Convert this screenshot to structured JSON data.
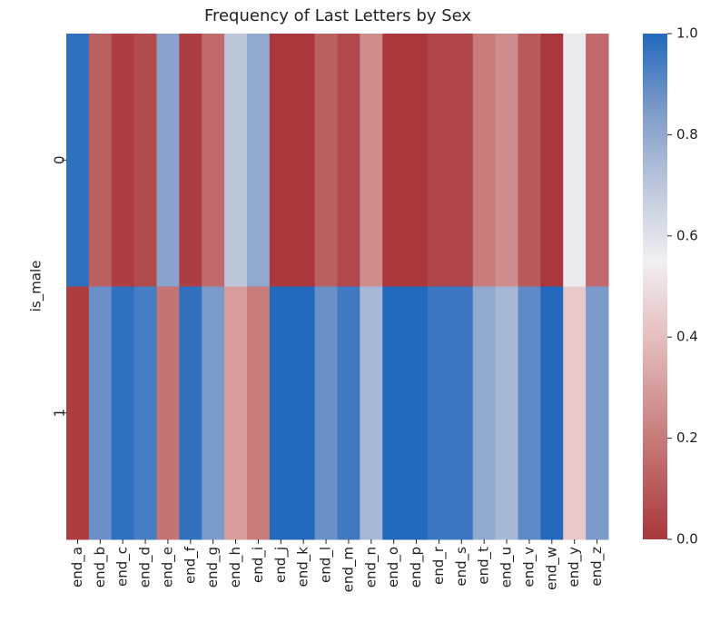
{
  "chart_data": {
    "type": "heatmap",
    "title": "Frequency of Last Letters by Sex",
    "ylabel": "is_male",
    "x": [
      "end_a",
      "end_b",
      "end_c",
      "end_d",
      "end_e",
      "end_f",
      "end_g",
      "end_h",
      "end_i",
      "end_j",
      "end_k",
      "end_l",
      "end_m",
      "end_n",
      "end_o",
      "end_p",
      "end_r",
      "end_s",
      "end_t",
      "end_u",
      "end_v",
      "end_w",
      "end_y",
      "end_z"
    ],
    "y": [
      "0",
      "1"
    ],
    "values": [
      [
        0.98,
        0.12,
        0.02,
        0.06,
        0.82,
        0.02,
        0.15,
        0.7,
        0.8,
        0.0,
        0.0,
        0.12,
        0.05,
        0.25,
        0.0,
        0.0,
        0.04,
        0.04,
        0.2,
        0.25,
        0.1,
        0.0,
        0.57,
        0.15
      ],
      [
        0.02,
        0.88,
        0.98,
        0.94,
        0.18,
        0.98,
        0.85,
        0.3,
        0.2,
        1.0,
        1.0,
        0.88,
        0.95,
        0.75,
        1.0,
        1.0,
        0.96,
        0.96,
        0.8,
        0.75,
        0.9,
        1.0,
        0.43,
        0.85
      ]
    ],
    "zlim": [
      0,
      1
    ],
    "zticks": [
      {
        "value": 0,
        "label": "0.0"
      },
      {
        "value": 0.2,
        "label": "0.2"
      },
      {
        "value": 0.4,
        "label": "0.4"
      },
      {
        "value": 0.6,
        "label": "0.6"
      },
      {
        "value": 0.8,
        "label": "0.8"
      },
      {
        "value": 1,
        "label": "1.0"
      }
    ],
    "colormap": [
      [
        0,
        "#a9373b"
      ],
      [
        0.2,
        "#c77b7b"
      ],
      [
        0.4,
        "#e6bfbf"
      ],
      [
        0.55,
        "#f1eff2"
      ],
      [
        0.7,
        "#bcc7dc"
      ],
      [
        0.85,
        "#7c9ac9"
      ],
      [
        1,
        "#2369bd"
      ]
    ]
  }
}
